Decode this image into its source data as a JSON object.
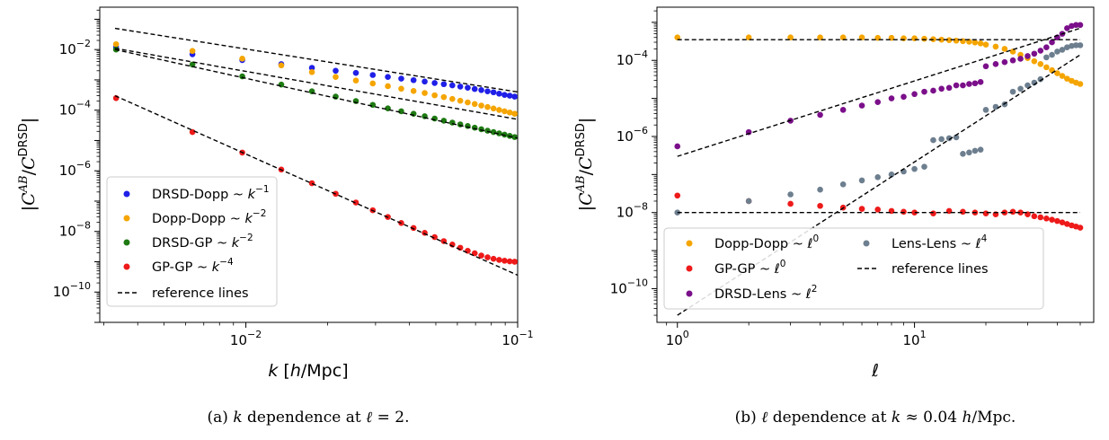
{
  "chart_data": [
    {
      "type": "scatter",
      "caption": "(a) k dependence at ℓ = 2.",
      "xlabel": "k [h/Mpc]",
      "ylabel": "|C^AB/C^DRSD|",
      "xscale": "log",
      "yscale": "log",
      "xlim": [
        0.0029,
        0.1
      ],
      "ylim": [
        1e-11,
        0.25
      ],
      "xticks": [
        {
          "v": 0.01,
          "m": "10",
          "e": "−2"
        },
        {
          "v": 0.1,
          "m": "10",
          "e": "−1"
        }
      ],
      "yticks": [
        {
          "v": 0.01,
          "m": "10",
          "e": "−2"
        },
        {
          "v": 0.0001,
          "m": "10",
          "e": "−4"
        },
        {
          "v": 1e-06,
          "m": "10",
          "e": "−6"
        },
        {
          "v": 1e-08,
          "m": "10",
          "e": "−8"
        },
        {
          "v": 1e-10,
          "m": "10",
          "e": "−10"
        }
      ],
      "legend_position": "lower-left",
      "series": [
        {
          "name": "DRSD-Dopp ~ k^-1",
          "color": "#1f1fe8",
          "x": [
            0.00333,
            0.00636,
            0.0097,
            0.0135,
            0.0175,
            0.0214,
            0.0254,
            0.0293,
            0.0333,
            0.0373,
            0.0414,
            0.0455,
            0.0495,
            0.0535,
            0.0575,
            0.0615,
            0.0655,
            0.0695,
            0.0735,
            0.0775,
            0.0815,
            0.0855,
            0.0895,
            0.0935,
            0.0975
          ],
          "y": [
            0.012,
            0.007,
            0.0045,
            0.0033,
            0.0025,
            0.002,
            0.0017,
            0.00145,
            0.00125,
            0.0011,
            0.00098,
            0.00088,
            0.00079,
            0.00072,
            0.00066,
            0.0006,
            0.00055,
            0.0005,
            0.00046,
            0.00042,
            0.00039,
            0.00035,
            0.00032,
            0.0003,
            0.00028
          ]
        },
        {
          "name": "Dopp-Dopp ~ k^-2",
          "color": "#f5a500",
          "x": [
            0.00333,
            0.00636,
            0.0097,
            0.0135,
            0.0175,
            0.0214,
            0.0254,
            0.0293,
            0.0333,
            0.0373,
            0.0414,
            0.0455,
            0.0495,
            0.0535,
            0.0575,
            0.0615,
            0.0655,
            0.0695,
            0.0735,
            0.0775,
            0.0815,
            0.0855,
            0.0895,
            0.0935,
            0.0975
          ],
          "y": [
            0.015,
            0.009,
            0.005,
            0.003,
            0.0018,
            0.00125,
            0.00095,
            0.00076,
            0.00062,
            0.00051,
            0.00043,
            0.00037,
            0.00031,
            0.00027,
            0.000235,
            0.000205,
            0.00018,
            0.00016,
            0.000142,
            0.000127,
            0.000114,
            0.000102,
            9.2e-05,
            8.4e-05,
            7.6e-05
          ]
        },
        {
          "name": "DRSD-GP ~ k^-2",
          "color": "#1e7a12",
          "x": [
            0.00333,
            0.00636,
            0.0097,
            0.0135,
            0.0175,
            0.0214,
            0.0254,
            0.0293,
            0.0333,
            0.0373,
            0.0414,
            0.0455,
            0.0495,
            0.0535,
            0.0575,
            0.0615,
            0.0655,
            0.0695,
            0.0735,
            0.0775,
            0.0815,
            0.0855,
            0.0895,
            0.0935,
            0.0975
          ],
          "y": [
            0.01,
            0.0032,
            0.0013,
            0.0007,
            0.00042,
            0.00028,
            0.0002,
            0.00015,
            0.000115,
            9.2e-05,
            7.6e-05,
            6.3e-05,
            5.3e-05,
            4.5e-05,
            3.9e-05,
            3.4e-05,
            3e-05,
            2.65e-05,
            2.35e-05,
            2.1e-05,
            1.9e-05,
            1.72e-05,
            1.56e-05,
            1.42e-05,
            1.3e-05
          ]
        },
        {
          "name": "GP-GP ~ k^-4",
          "color": "#ee1a1a",
          "x": [
            0.00333,
            0.00636,
            0.0097,
            0.0135,
            0.0175,
            0.0214,
            0.0254,
            0.0293,
            0.0333,
            0.0373,
            0.0414,
            0.0455,
            0.0495,
            0.0535,
            0.0575,
            0.0615,
            0.0655,
            0.0695,
            0.0735,
            0.0775,
            0.0815,
            0.0855,
            0.0895,
            0.0935,
            0.0975
          ],
          "y": [
            0.00025,
            1.9e-05,
            4e-06,
            1.1e-06,
            3.9e-07,
            1.75e-07,
            9e-08,
            5e-08,
            3e-08,
            1.9e-08,
            1.3e-08,
            9e-09,
            6.5e-09,
            4.8e-09,
            3.7e-09,
            2.9e-09,
            2.3e-09,
            1.9e-09,
            1.6e-09,
            1.4e-09,
            1.25e-09,
            1.15e-09,
            1.08e-09,
            1.03e-09,
            1e-09
          ]
        },
        {
          "name": "reference lines",
          "style": "dashed",
          "color": "#000000",
          "lines": [
            {
              "x": [
                0.0033,
                0.1
              ],
              "y": [
                0.05,
                0.0004
              ]
            },
            {
              "x": [
                0.0033,
                0.1
              ],
              "y": [
                0.011,
                5e-05
              ]
            },
            {
              "x": [
                0.0033,
                0.1
              ],
              "y": [
                0.01,
                1.2e-05
              ]
            },
            {
              "x": [
                0.0033,
                0.1
              ],
              "y": [
                0.0003,
                3.6e-10
              ]
            }
          ]
        }
      ]
    },
    {
      "type": "scatter",
      "caption": "(b) ℓ dependence at k ≈ 0.04 h/Mpc.",
      "xlabel": "ℓ",
      "ylabel": "|C^AB/C^DRSD|",
      "xscale": "log",
      "yscale": "log",
      "xlim": [
        0.82,
        57
      ],
      "ylim": [
        1.3e-11,
        0.0025
      ],
      "xticks": [
        {
          "v": 1,
          "m": "10",
          "e": "0"
        },
        {
          "v": 10,
          "m": "10",
          "e": "1"
        }
      ],
      "yticks": [
        {
          "v": 0.0001,
          "m": "10",
          "e": "−4"
        },
        {
          "v": 1e-06,
          "m": "10",
          "e": "−6"
        },
        {
          "v": 1e-08,
          "m": "10",
          "e": "−8"
        },
        {
          "v": 1e-10,
          "m": "10",
          "e": "−10"
        }
      ],
      "legend_position": "lower-center",
      "series": [
        {
          "name": "Dopp-Dopp ~ ℓ^0",
          "color": "#f5a500",
          "x": [
            1,
            2,
            3,
            4,
            5,
            6,
            7,
            8,
            9,
            10,
            11,
            12,
            13,
            14,
            15,
            16,
            17,
            18,
            19,
            20,
            22,
            24,
            26,
            28,
            30,
            32,
            34,
            36,
            38,
            40,
            42,
            44,
            46,
            48,
            50
          ],
          "y": [
            0.0004,
            0.0004,
            0.0004,
            0.0004,
            0.0004,
            0.0004,
            0.00039,
            0.00039,
            0.00038,
            0.00038,
            0.00037,
            0.00036,
            0.00035,
            0.00034,
            0.00033,
            0.00032,
            0.00031,
            0.000295,
            0.00028,
            0.00026,
            0.00023,
            0.0002,
            0.00017,
            0.00014,
            0.000115,
            9.5e-05,
            8e-05,
            6.6e-05,
            5.5e-05,
            4.6e-05,
            3.9e-05,
            3.3e-05,
            2.9e-05,
            2.6e-05,
            2.4e-05
          ]
        },
        {
          "name": "GP-GP ~ ℓ^0",
          "color": "#ee1a1a",
          "x": [
            1,
            2,
            3,
            4,
            5,
            6,
            7,
            8,
            9,
            10,
            12,
            14,
            16,
            18,
            20,
            22,
            24,
            26,
            28,
            30,
            32,
            34,
            36,
            38,
            40,
            42,
            44,
            46,
            48,
            50
          ],
          "y": [
            2.8e-08,
            2e-08,
            1.7e-08,
            1.5e-08,
            1.35e-08,
            1.25e-08,
            1.2e-08,
            1.1e-08,
            1.05e-08,
            1e-08,
            9.5e-09,
            1.1e-08,
            1.05e-08,
            1e-08,
            9.5e-09,
            9e-09,
            1e-08,
            1.05e-08,
            1e-08,
            9e-09,
            8e-09,
            7.5e-09,
            7e-09,
            6.5e-09,
            6e-09,
            5.5e-09,
            5e-09,
            4.6e-09,
            4.3e-09,
            4e-09
          ]
        },
        {
          "name": "DRSD-Lens ~ ℓ^2",
          "color": "#7b0f8a",
          "x": [
            1,
            2,
            3,
            4,
            5,
            6,
            7,
            8,
            9,
            10,
            11,
            12,
            13,
            14,
            15,
            16,
            17,
            18,
            19,
            20,
            22,
            24,
            26,
            28,
            30,
            32,
            34,
            36,
            38,
            40,
            42,
            44,
            46,
            48,
            50
          ],
          "y": [
            5.5e-07,
            1.3e-06,
            2.6e-06,
            3.7e-06,
            5e-06,
            6.5e-06,
            8e-06,
            1e-05,
            1.1e-05,
            1.3e-05,
            1.5e-05,
            1.6e-05,
            1.8e-05,
            1.9e-05,
            2.2e-05,
            2.2e-05,
            2.4e-05,
            2.5e-05,
            2.7e-05,
            7e-05,
            8e-05,
            9e-05,
            0.0001,
            0.00011,
            0.00013,
            0.00015,
            0.00018,
            0.00022,
            0.0003,
            0.0004,
            0.0005,
            0.0007,
            0.0008,
            0.00085,
            0.00085
          ]
        },
        {
          "name": "Lens-Lens ~ ℓ^4",
          "color": "#6d7f8f",
          "x": [
            1,
            2,
            3,
            4,
            5,
            6,
            7,
            8,
            9,
            10,
            11,
            12,
            13,
            14,
            15,
            16,
            17,
            18,
            19,
            20,
            22,
            24,
            26,
            28,
            30,
            32,
            34,
            36,
            38,
            40,
            42,
            44,
            46,
            48,
            50
          ],
          "y": [
            1e-08,
            2e-08,
            3e-08,
            4e-08,
            5.5e-08,
            7e-08,
            8.5e-08,
            1e-07,
            1.2e-07,
            1.4e-07,
            1.6e-07,
            8e-07,
            8.5e-07,
            9e-07,
            9.5e-07,
            3.5e-07,
            3.8e-07,
            4.2e-07,
            4.5e-07,
            5e-06,
            6e-06,
            7e-06,
            1.5e-05,
            1.8e-05,
            2.2e-05,
            2.6e-05,
            3.2e-05,
            0.00012,
            0.00014,
            0.00017,
            0.00019,
            0.00022,
            0.00024,
            0.00025,
            0.00025
          ]
        },
        {
          "name": "reference lines",
          "style": "dashed",
          "color": "#000000",
          "lines": [
            {
              "x": [
                1,
                50
              ],
              "y": [
                0.00035,
                0.00035
              ]
            },
            {
              "x": [
                1,
                50
              ],
              "y": [
                1e-08,
                1e-08
              ]
            },
            {
              "x": [
                1,
                50
              ],
              "y": [
                3e-07,
                0.0007
              ]
            },
            {
              "x": [
                1,
                50
              ],
              "y": [
                2e-11,
                0.00014
              ]
            }
          ]
        }
      ]
    }
  ],
  "legend_a": [
    {
      "label": "DRSD-Dopp ~ ",
      "var": "k",
      "exp": "−1",
      "color": "#1f1fe8"
    },
    {
      "label": "Dopp-Dopp ~ ",
      "var": "k",
      "exp": "−2",
      "color": "#f5a500"
    },
    {
      "label": "DRSD-GP ~ ",
      "var": "k",
      "exp": "−2",
      "color": "#1e7a12"
    },
    {
      "label": "GP-GP ~ ",
      "var": "k",
      "exp": "−4",
      "color": "#ee1a1a"
    },
    {
      "label": "reference lines",
      "var": "",
      "exp": "",
      "color": "#000000",
      "dashed": true
    }
  ],
  "legend_b": [
    {
      "label": "Dopp-Dopp ~ ",
      "var": "ℓ",
      "exp": "0",
      "color": "#f5a500"
    },
    {
      "label": "GP-GP ~ ",
      "var": "ℓ",
      "exp": "0",
      "color": "#ee1a1a"
    },
    {
      "label": "DRSD-Lens ~ ",
      "var": "ℓ",
      "exp": "2",
      "color": "#7b0f8a"
    },
    {
      "label": "Lens-Lens ~ ",
      "var": "ℓ",
      "exp": "4",
      "color": "#6d7f8f"
    },
    {
      "label": "reference lines",
      "var": "",
      "exp": "",
      "color": "#000000",
      "dashed": true
    }
  ],
  "ylabel_parts": {
    "open": "|",
    "c": "C",
    "sup_ab": "AB",
    "slash": "/",
    "c2": "C",
    "sup_drsd": "DRSD",
    "close": "|"
  },
  "xlabel_a_parts": {
    "k": "k",
    "rest": " [",
    "h": "h",
    "unit": "/Mpc]"
  },
  "xlabel_b_parts": {
    "ell": "ℓ"
  },
  "caption_a_parts": {
    "pre": "(a) ",
    "k": "k",
    "mid": " dependence at ",
    "ell": "ℓ",
    "post": " = 2."
  },
  "caption_b_parts": {
    "pre": "(b) ",
    "ell": "ℓ",
    "mid": " dependence at ",
    "k": "k",
    "approx": " ≈ 0.04 ",
    "h": "h",
    "post": "/Mpc."
  }
}
